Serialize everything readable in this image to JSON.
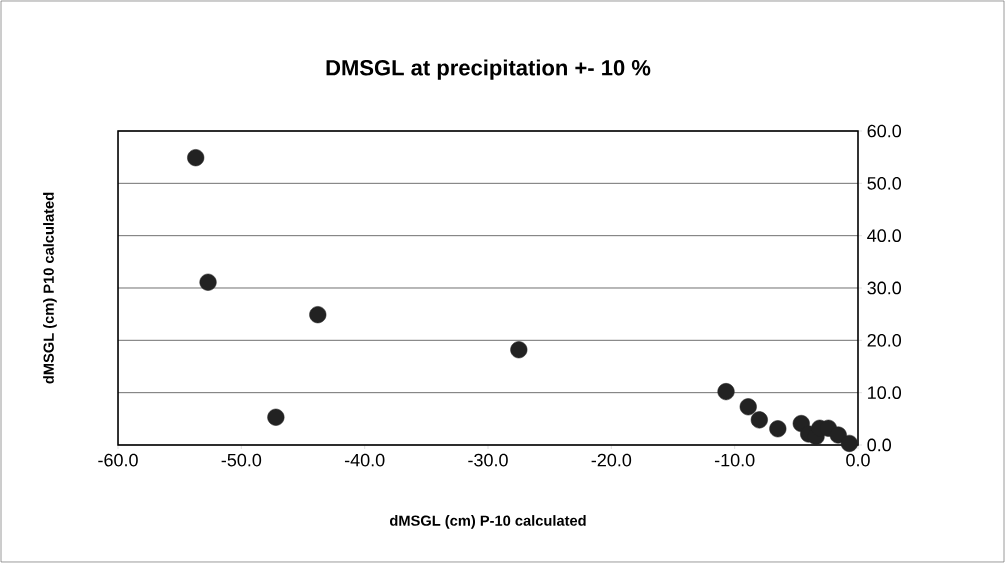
{
  "chart_data": {
    "type": "scatter",
    "title": "DMSGL at precipitation +- 10 %",
    "xlabel": "dMSGL (cm) P-10 calculated",
    "ylabel": "dMSGL (cm) P10 calculated",
    "x": [
      -53.7,
      -52.7,
      -43.8,
      -47.2,
      -27.5,
      -10.7,
      -8.9,
      -8.0,
      -6.5,
      -4.6,
      -4.0,
      -3.4,
      -3.1,
      -2.4,
      -1.6,
      -0.7
    ],
    "values": [
      54.9,
      31.1,
      24.9,
      5.3,
      18.2,
      10.2,
      7.3,
      4.8,
      3.1,
      4.1,
      2.1,
      1.6,
      3.2,
      3.2,
      1.9,
      0.3
    ],
    "color": "#222222",
    "marker": "circle",
    "grid": "y",
    "xlim": [
      -60,
      0
    ],
    "ylim": [
      0,
      60
    ],
    "xticks": [
      {
        "value": -60,
        "label": "-60.0"
      },
      {
        "value": -50,
        "label": "-50.0"
      },
      {
        "value": -40,
        "label": "-40.0"
      },
      {
        "value": -30,
        "label": "-30.0"
      },
      {
        "value": -20,
        "label": "-20.0"
      },
      {
        "value": -10,
        "label": "-10.0"
      },
      {
        "value": 0,
        "label": "0.0"
      }
    ],
    "yticks": [
      {
        "value": 0,
        "label": "0.0"
      },
      {
        "value": 10,
        "label": "10.0"
      },
      {
        "value": 20,
        "label": "20.0"
      },
      {
        "value": 30,
        "label": "30.0"
      },
      {
        "value": 40,
        "label": "40.0"
      },
      {
        "value": 50,
        "label": "50.0"
      },
      {
        "value": 60,
        "label": "60.0"
      }
    ]
  }
}
